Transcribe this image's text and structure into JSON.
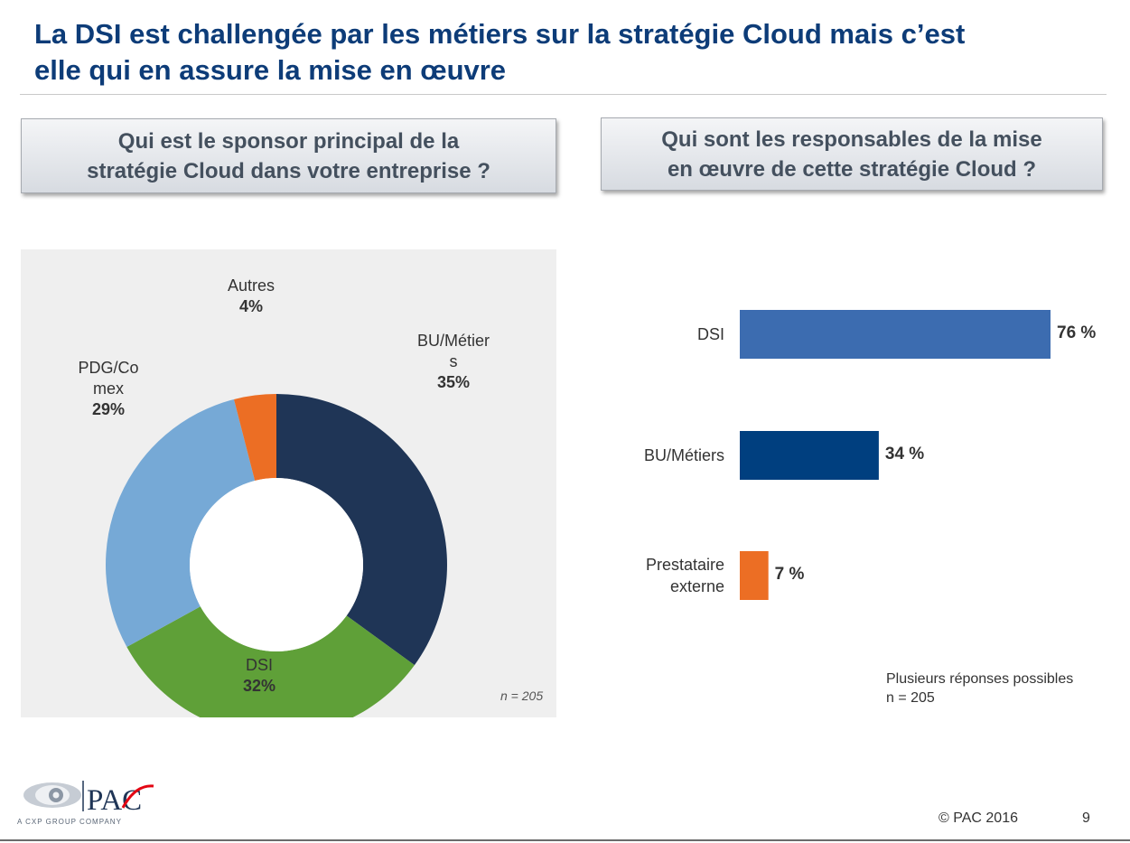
{
  "slide": {
    "title_line1": "La DSI est challengée par les métiers sur la stratégie Cloud mais c’est",
    "title_line2": "elle qui en assure la mise en œuvre",
    "page_number": "9",
    "copyright": "© PAC 2016",
    "logo_text": "PAC",
    "logo_tagline": "A CXP GROUP COMPANY"
  },
  "left_panel": {
    "question_line1": "Qui est le sponsor principal de la",
    "question_line2": "stratégie Cloud dans votre entreprise ?",
    "sample_note": "n = 205"
  },
  "right_panel": {
    "question_line1": "Qui sont les responsables de la mise",
    "question_line2": "en œuvre de cette stratégie Cloud ?",
    "note_line1": "Plusieurs réponses possibles",
    "note_line2": "n = 205"
  },
  "chart_data": [
    {
      "type": "pie",
      "style": "donut",
      "title": "Qui est le sponsor principal de la stratégie Cloud dans votre entreprise ?",
      "categories": [
        "BU/Métiers",
        "DSI",
        "PDG/Comex",
        "Autres"
      ],
      "values": [
        35,
        32,
        29,
        4
      ],
      "unit": "%",
      "labels": [
        {
          "name_lines": [
            "BU/Métier",
            "s"
          ],
          "value_text": "35%"
        },
        {
          "name_lines": [
            "DSI"
          ],
          "value_text": "32%"
        },
        {
          "name_lines": [
            "PDG/Co",
            "mex"
          ],
          "value_text": "29%"
        },
        {
          "name_lines": [
            "Autres"
          ],
          "value_text": "4%"
        }
      ],
      "colors": [
        "#1f3556",
        "#5fa038",
        "#76a9d6",
        "#ec6e24"
      ],
      "background": "#efefef"
    },
    {
      "type": "bar",
      "orientation": "horizontal",
      "title": "Qui sont les responsables de la mise en œuvre de cette stratégie Cloud ?",
      "categories": [
        "DSI",
        "BU/Métiers",
        "Prestataire externe"
      ],
      "category_lines": [
        [
          "DSI"
        ],
        [
          "BU/Métiers"
        ],
        [
          "Prestataire",
          "externe"
        ]
      ],
      "values": [
        76,
        34,
        7
      ],
      "value_labels": [
        "76 %",
        "34 %",
        "7 %"
      ],
      "unit": "%",
      "xlim": [
        0,
        100
      ],
      "colors": [
        "#3c6cb0",
        "#003f7f",
        "#ec6e24"
      ]
    }
  ]
}
